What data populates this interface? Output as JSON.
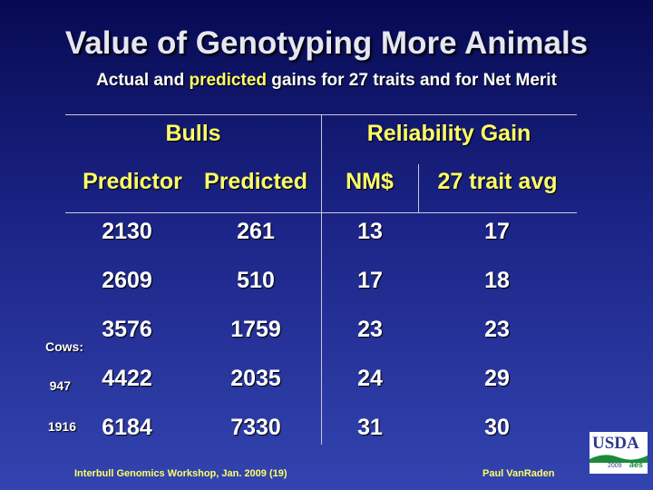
{
  "title": "Value of Genotyping More Animals",
  "subtitle": {
    "actual": "Actual",
    "and1": " and ",
    "predicted": "predicted",
    "rest": " gains for 27 traits and for Net Merit"
  },
  "table": {
    "group_headers": {
      "bulls": "Bulls",
      "reliability_gain": "Reliability Gain"
    },
    "column_headers": [
      "Predictor",
      "Predicted",
      "NM$",
      "27 trait avg"
    ],
    "rows": [
      [
        "2130",
        "261",
        "13",
        "17"
      ],
      [
        "2609",
        "510",
        "17",
        "18"
      ],
      [
        "3576",
        "1759",
        "23",
        "23"
      ],
      [
        "4422",
        "2035",
        "24",
        "29"
      ],
      [
        "6184",
        "7330",
        "31",
        "30"
      ]
    ],
    "cows_label": "Cows:",
    "cows_values": [
      "947",
      "1916"
    ]
  },
  "footer": {
    "left": "Interbull Genomics Workshop, Jan. 2009 (19)",
    "right": "Paul VanRaden"
  },
  "logo": {
    "text": "USDA",
    "year": "2009",
    "aes": "aes"
  },
  "colors": {
    "header": "#ffff66",
    "text": "#ffffff",
    "background_top": "#070a52",
    "background_bottom": "#3344b0"
  }
}
